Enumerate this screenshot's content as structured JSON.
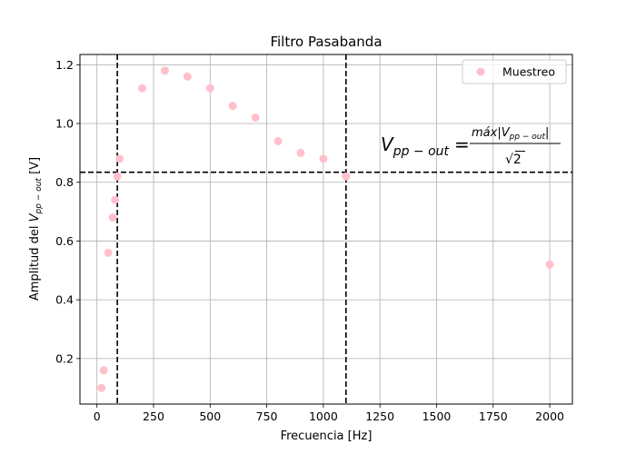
{
  "chart_data": {
    "type": "scatter",
    "title": "Filtro Pasabanda",
    "xlabel": "Frecuencia [Hz]",
    "ylabel_prefix": "Amplitud del ",
    "ylabel_var": "V",
    "ylabel_sub": "pp − out",
    "ylabel_unit": " [V]",
    "xlim": [
      -75,
      2100
    ],
    "ylim": [
      0.045,
      1.235
    ],
    "x_ticks": [
      0,
      250,
      500,
      750,
      1000,
      1250,
      1500,
      1750,
      2000
    ],
    "y_ticks": [
      0.2,
      0.4,
      0.6,
      0.8,
      1.0,
      1.2
    ],
    "y_tick_decimals": 1,
    "grid": true,
    "legend_position": "top-right",
    "series": [
      {
        "name": "Muestreo",
        "color": "#ffc0cb",
        "x": [
          20,
          30,
          50,
          70,
          80,
          90,
          100,
          200,
          300,
          400,
          500,
          600,
          700,
          800,
          900,
          1000,
          1100,
          2000
        ],
        "y": [
          0.1,
          0.16,
          0.56,
          0.68,
          0.74,
          0.82,
          0.88,
          1.12,
          1.18,
          1.16,
          1.12,
          1.06,
          1.02,
          0.94,
          0.9,
          0.88,
          0.82,
          0.52
        ]
      }
    ],
    "reference_lines": {
      "color": "#000000",
      "vertical_x": [
        90,
        1100
      ],
      "horizontal_y": 0.834
    },
    "annotation": {
      "lhs_var": "V",
      "lhs_sub": "pp − out",
      "equals": "=",
      "num_prefix": "máx|V",
      "num_sub": "pp − out",
      "num_suffix": "|",
      "den_sqrt": "√",
      "den_value": "2"
    }
  }
}
